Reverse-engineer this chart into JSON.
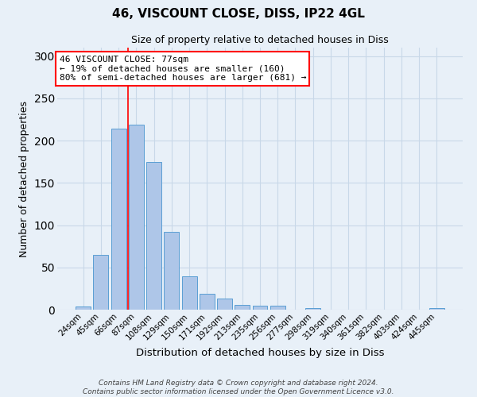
{
  "title1": "46, VISCOUNT CLOSE, DISS, IP22 4GL",
  "title2": "Size of property relative to detached houses in Diss",
  "xlabel": "Distribution of detached houses by size in Diss",
  "ylabel": "Number of detached properties",
  "categories": [
    "24sqm",
    "45sqm",
    "66sqm",
    "87sqm",
    "108sqm",
    "129sqm",
    "150sqm",
    "171sqm",
    "192sqm",
    "213sqm",
    "235sqm",
    "256sqm",
    "277sqm",
    "298sqm",
    "319sqm",
    "340sqm",
    "361sqm",
    "382sqm",
    "403sqm",
    "424sqm",
    "445sqm"
  ],
  "values": [
    4,
    65,
    214,
    219,
    175,
    92,
    39,
    19,
    13,
    6,
    5,
    5,
    0,
    2,
    0,
    0,
    0,
    0,
    0,
    0,
    2
  ],
  "bar_color": "#aec6e8",
  "bar_edge_color": "#5a9fd4",
  "grid_color": "#c8d8e8",
  "bg_color": "#e8f0f8",
  "red_line_x": 2.52,
  "annotation_text": "46 VISCOUNT CLOSE: 77sqm\n← 19% of detached houses are smaller (160)\n80% of semi-detached houses are larger (681) →",
  "annotation_box_color": "white",
  "annotation_box_edge": "red",
  "footer": "Contains HM Land Registry data © Crown copyright and database right 2024.\nContains public sector information licensed under the Open Government Licence v3.0.",
  "ylim": [
    0,
    310
  ],
  "yticks": [
    0,
    50,
    100,
    150,
    200,
    250,
    300
  ]
}
